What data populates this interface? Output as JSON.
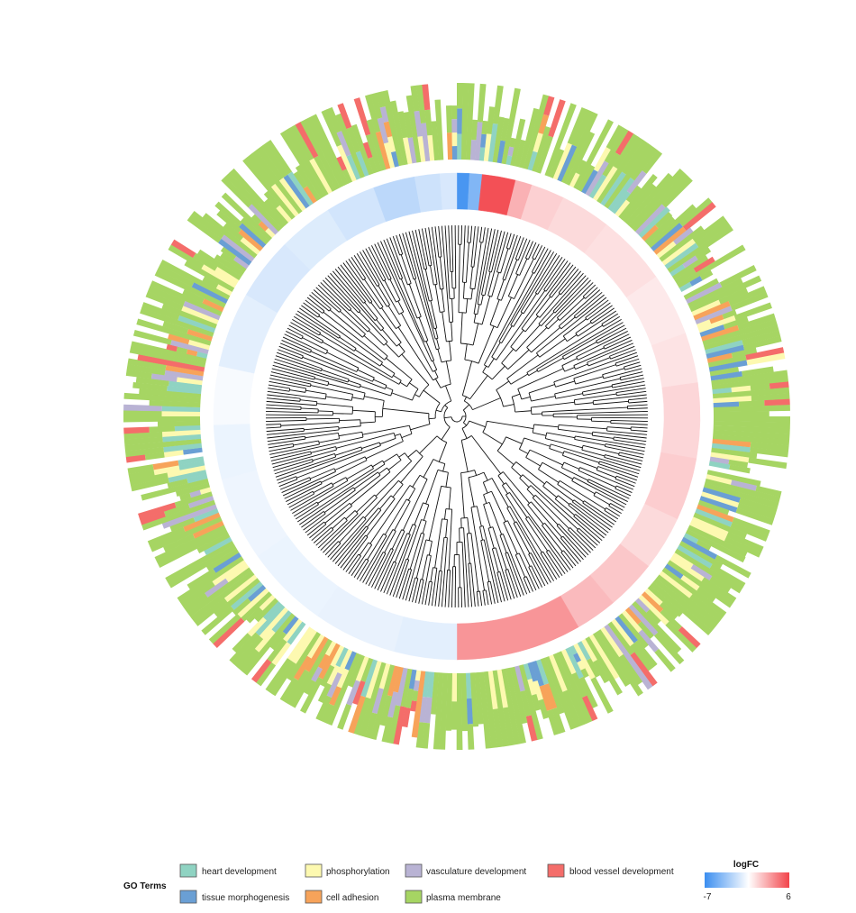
{
  "chart_data": {
    "type": "circular-dendrogram-heatmap",
    "title": "",
    "gene_count": 360,
    "inner_ring": {
      "name": "logFC",
      "min": -7,
      "max": 6,
      "colors": {
        "low": "#3b8ef0",
        "mid": "#ffffff",
        "high": "#f2444a"
      },
      "segments": [
        {
          "from": 0,
          "to": 3,
          "value": -6.5
        },
        {
          "from": 3,
          "to": 6,
          "value": -4.5
        },
        {
          "from": 6,
          "to": 14,
          "value": 5.6
        },
        {
          "from": 14,
          "to": 18,
          "value": 2.5
        },
        {
          "from": 18,
          "to": 26,
          "value": 1.5
        },
        {
          "from": 26,
          "to": 38,
          "value": 1.2
        },
        {
          "from": 38,
          "to": 55,
          "value": 1.0
        },
        {
          "from": 55,
          "to": 70,
          "value": 0.7
        },
        {
          "from": 70,
          "to": 82,
          "value": 0.9
        },
        {
          "from": 82,
          "to": 100,
          "value": 1.3
        },
        {
          "from": 100,
          "to": 115,
          "value": 1.6
        },
        {
          "from": 115,
          "to": 128,
          "value": 1.2
        },
        {
          "from": 128,
          "to": 140,
          "value": 1.8
        },
        {
          "from": 140,
          "to": 150,
          "value": 2.2
        },
        {
          "from": 150,
          "to": 180,
          "value": 3.4
        },
        {
          "from": 180,
          "to": 195,
          "value": -1.0
        },
        {
          "from": 195,
          "to": 215,
          "value": -0.8
        },
        {
          "from": 215,
          "to": 235,
          "value": -0.7
        },
        {
          "from": 235,
          "to": 255,
          "value": -0.6
        },
        {
          "from": 255,
          "to": 268,
          "value": -0.7
        },
        {
          "from": 268,
          "to": 282,
          "value": -0.3
        },
        {
          "from": 282,
          "to": 300,
          "value": -1.0
        },
        {
          "from": 300,
          "to": 315,
          "value": -1.4
        },
        {
          "from": 315,
          "to": 328,
          "value": -1.2
        },
        {
          "from": 328,
          "to": 340,
          "value": -1.6
        },
        {
          "from": 340,
          "to": 350,
          "value": -2.4
        },
        {
          "from": 350,
          "to": 356,
          "value": -1.8
        },
        {
          "from": 356,
          "to": 360,
          "value": -1.4
        }
      ]
    },
    "outer_ring": {
      "name": "GO Terms",
      "term_names": [
        "heart development",
        "tissue morphogenesis",
        "phosphorylation",
        "cell adhesion",
        "vasculature development",
        "plasma membrane",
        "blood vessel development"
      ],
      "term_colors": [
        "#8fd3c2",
        "#6a9fd4",
        "#fdf9b0",
        "#f7a35a",
        "#b9b3d4",
        "#a6d563",
        "#f46d6a"
      ],
      "membership_weights": [
        0.12,
        0.1,
        0.22,
        0.12,
        0.1,
        0.92,
        0.12
      ],
      "seed": 7
    },
    "dendrogram": {
      "leaves": 360,
      "seed": 11
    }
  },
  "legend": {
    "go_title": "GO Terms",
    "go_items": [
      {
        "label": "heart development",
        "color": "#8fd3c2"
      },
      {
        "label": "tissue morphogenesis",
        "color": "#6a9fd4"
      },
      {
        "label": "phosphorylation",
        "color": "#fdf9b0"
      },
      {
        "label": "cell adhesion",
        "color": "#f7a35a"
      },
      {
        "label": "vasculature development",
        "color": "#b9b3d4"
      },
      {
        "label": "plasma membrane",
        "color": "#a6d563"
      },
      {
        "label": "blood vessel development",
        "color": "#f46d6a"
      }
    ],
    "logfc_title": "logFC",
    "logfc_min_label": "-7",
    "logfc_max_label": "6"
  }
}
